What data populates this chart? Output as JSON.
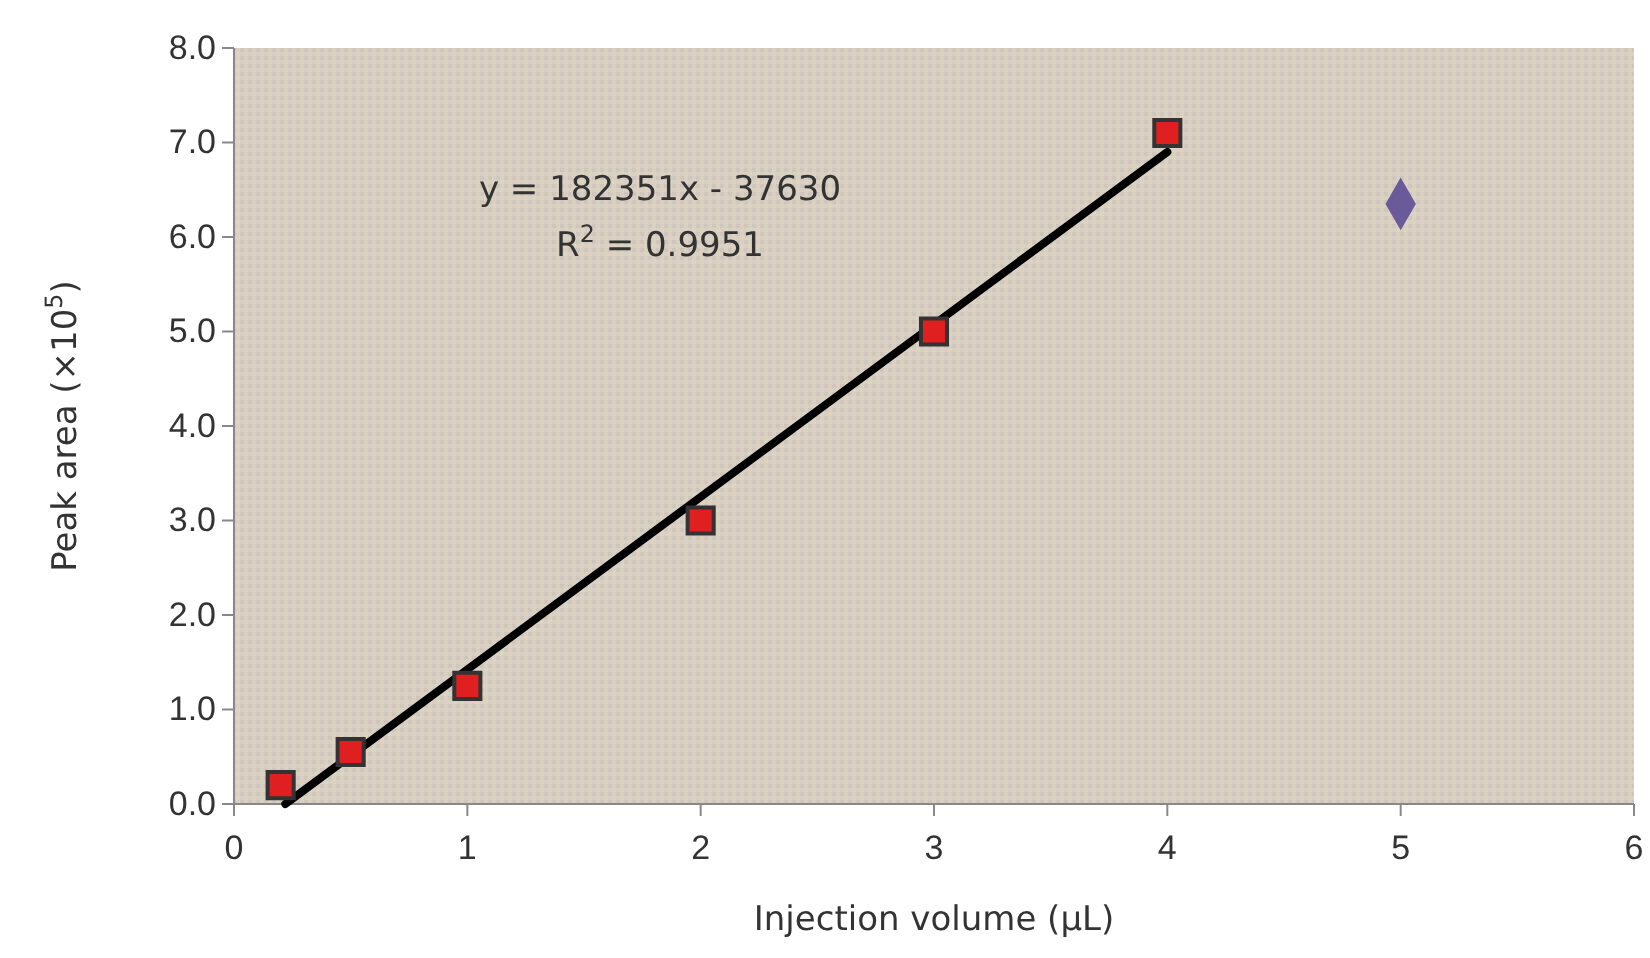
{
  "chart_data": {
    "type": "scatter",
    "xlabel": "Injection volume (µL)",
    "ylabel": "Peak area (×10$^{5}$)",
    "annotations": [
      "y = 182351x - 37630",
      "R$^{2}$ = 0.9951"
    ],
    "xlim": [
      0,
      6
    ],
    "xticks": [
      0,
      1,
      2,
      3,
      4,
      5,
      6
    ],
    "ylim": [
      0,
      8
    ],
    "yticks": [
      {
        "value": 0,
        "label": "0.0"
      },
      {
        "value": 1,
        "label": "1.0"
      },
      {
        "value": 2,
        "label": "2.0"
      },
      {
        "value": 3,
        "label": "3.0"
      },
      {
        "value": 4,
        "label": "4.0"
      },
      {
        "value": 5,
        "label": "5.0"
      },
      {
        "value": 6,
        "label": "6.0"
      },
      {
        "value": 7,
        "label": "7.0"
      },
      {
        "value": 8,
        "label": "8.0"
      }
    ],
    "grid": false,
    "series": [
      {
        "type": "line",
        "color": "#000000",
        "marker": "none",
        "line_style": "solid",
        "x": [
          0.22,
          4
        ],
        "values": [
          0.0,
          6.9
        ]
      },
      {
        "color": "#e02020",
        "marker": "square",
        "x": [
          0.2,
          0.5,
          1,
          2,
          3,
          4
        ],
        "values": [
          0.2,
          0.55,
          1.25,
          3.0,
          5.0,
          7.1
        ]
      },
      {
        "color": "#6a5a9a",
        "marker": "diamond",
        "x": [
          5
        ],
        "values": [
          6.35
        ]
      }
    ]
  }
}
